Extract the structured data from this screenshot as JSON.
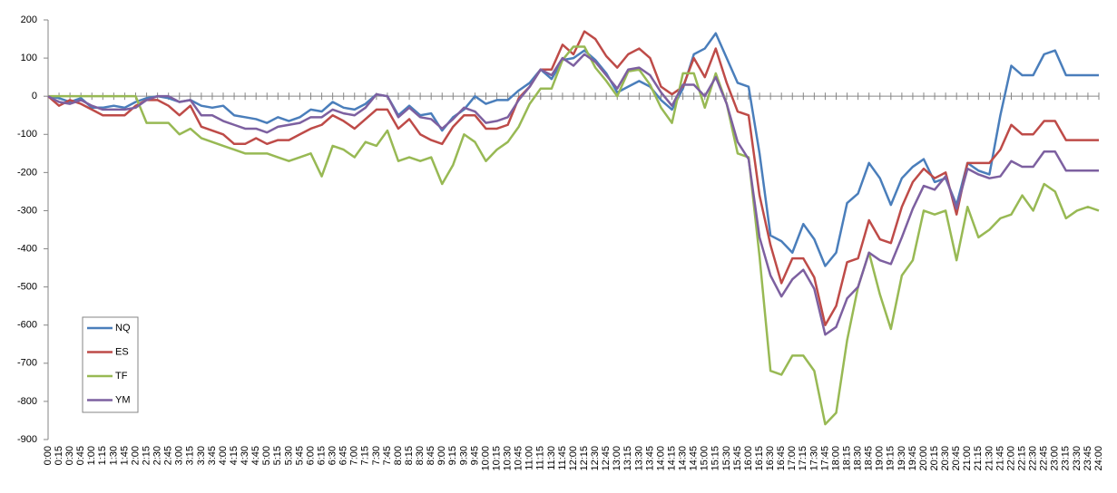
{
  "chart_data": {
    "type": "line",
    "categories": [
      "0:00",
      "0:15",
      "0:30",
      "0:45",
      "1:00",
      "1:15",
      "1:30",
      "1:45",
      "2:00",
      "2:15",
      "2:30",
      "2:45",
      "3:00",
      "3:15",
      "3:30",
      "3:45",
      "4:00",
      "4:15",
      "4:30",
      "4:45",
      "5:00",
      "5:15",
      "5:30",
      "5:45",
      "6:00",
      "6:15",
      "6:30",
      "6:45",
      "7:00",
      "7:15",
      "7:30",
      "7:45",
      "8:00",
      "8:15",
      "8:30",
      "8:45",
      "9:00",
      "9:15",
      "9:30",
      "9:45",
      "10:00",
      "10:15",
      "10:30",
      "10:45",
      "11:00",
      "11:15",
      "11:30",
      "11:45",
      "12:00",
      "12:15",
      "12:30",
      "12:45",
      "13:00",
      "13:15",
      "13:30",
      "13:45",
      "14:00",
      "14:15",
      "14:30",
      "14:45",
      "15:00",
      "15:15",
      "15:30",
      "15:45",
      "16:00",
      "16:15",
      "16:30",
      "16:45",
      "17:00",
      "17:15",
      "17:30",
      "17:45",
      "18:00",
      "18:15",
      "18:30",
      "18:45",
      "19:00",
      "19:15",
      "19:30",
      "19:45",
      "20:00",
      "20:15",
      "20:30",
      "20:45",
      "21:00",
      "21:15",
      "21:30",
      "21:45",
      "22:00",
      "22:15",
      "22:30",
      "22:45",
      "23:00",
      "23:15",
      "23:30",
      "23:45",
      "24:00"
    ],
    "series": [
      {
        "name": "NQ",
        "color": "#4a7ebb",
        "values": [
          0,
          -5,
          -15,
          -5,
          -30,
          -30,
          -25,
          -30,
          -15,
          -5,
          0,
          -5,
          -15,
          -10,
          -25,
          -30,
          -25,
          -50,
          -55,
          -60,
          -70,
          -55,
          -65,
          -55,
          -35,
          -40,
          -15,
          -30,
          -35,
          -20,
          5,
          0,
          -50,
          -25,
          -50,
          -45,
          -90,
          -55,
          -35,
          0,
          -20,
          -10,
          -10,
          15,
          35,
          70,
          45,
          95,
          100,
          120,
          95,
          60,
          10,
          25,
          40,
          25,
          -10,
          -35,
          20,
          110,
          125,
          165,
          100,
          35,
          25,
          -150,
          -365,
          -380,
          -410,
          -335,
          -375,
          -445,
          -410,
          -280,
          -255,
          -175,
          -215,
          -285,
          -215,
          -185,
          -165,
          -225,
          -215,
          -285,
          -175,
          -195,
          -205,
          -50,
          80,
          55,
          55,
          110,
          120,
          55,
          55,
          55,
          55
        ]
      },
      {
        "name": "ES",
        "color": "#be4b48",
        "values": [
          0,
          -25,
          -10,
          -20,
          -35,
          -50,
          -50,
          -50,
          -25,
          -10,
          -10,
          -25,
          -50,
          -25,
          -80,
          -90,
          -100,
          -125,
          -125,
          -110,
          -125,
          -115,
          -115,
          -100,
          -85,
          -75,
          -50,
          -65,
          -85,
          -60,
          -35,
          -35,
          -85,
          -60,
          -100,
          -115,
          -125,
          -80,
          -50,
          -50,
          -85,
          -85,
          -75,
          -5,
          25,
          70,
          70,
          135,
          110,
          170,
          150,
          105,
          75,
          110,
          125,
          100,
          25,
          5,
          25,
          100,
          50,
          125,
          35,
          -40,
          -50,
          -260,
          -390,
          -490,
          -425,
          -425,
          -475,
          -600,
          -550,
          -435,
          -425,
          -325,
          -375,
          -385,
          -290,
          -225,
          -190,
          -215,
          -200,
          -310,
          -175,
          -175,
          -175,
          -140,
          -75,
          -100,
          -100,
          -65,
          -65,
          -115,
          -115,
          -115,
          -115
        ]
      },
      {
        "name": "TF",
        "color": "#98b954",
        "values": [
          0,
          0,
          0,
          0,
          0,
          0,
          0,
          0,
          0,
          -70,
          -70,
          -70,
          -100,
          -85,
          -110,
          -120,
          -130,
          -140,
          -150,
          -150,
          -150,
          -160,
          -170,
          -160,
          -150,
          -210,
          -130,
          -140,
          -160,
          -120,
          -130,
          -90,
          -170,
          -160,
          -170,
          -160,
          -230,
          -180,
          -100,
          -120,
          -170,
          -140,
          -120,
          -80,
          -20,
          20,
          20,
          95,
          130,
          130,
          75,
          40,
          0,
          65,
          70,
          30,
          -30,
          -70,
          60,
          60,
          -30,
          60,
          -20,
          -150,
          -160,
          -420,
          -720,
          -730,
          -680,
          -680,
          -720,
          -860,
          -830,
          -640,
          -500,
          -410,
          -520,
          -610,
          -470,
          -430,
          -300,
          -310,
          -300,
          -430,
          -290,
          -370,
          -350,
          -320,
          -310,
          -260,
          -300,
          -230,
          -250,
          -320,
          -300,
          -290,
          -300
        ]
      },
      {
        "name": "YM",
        "color": "#7d60a0",
        "values": [
          0,
          -15,
          -20,
          -10,
          -25,
          -35,
          -35,
          -35,
          -30,
          -10,
          0,
          0,
          -15,
          -10,
          -50,
          -50,
          -65,
          -75,
          -85,
          -85,
          -95,
          -80,
          -75,
          -70,
          -55,
          -55,
          -35,
          -45,
          -50,
          -30,
          5,
          0,
          -55,
          -30,
          -55,
          -60,
          -85,
          -60,
          -30,
          -40,
          -70,
          -65,
          -55,
          -10,
          25,
          70,
          55,
          100,
          80,
          110,
          90,
          55,
          20,
          70,
          75,
          55,
          10,
          -25,
          30,
          30,
          0,
          50,
          -20,
          -120,
          -165,
          -370,
          -470,
          -525,
          -480,
          -455,
          -505,
          -625,
          -605,
          -530,
          -500,
          -410,
          -430,
          -440,
          -370,
          -295,
          -235,
          -245,
          -210,
          -295,
          -190,
          -205,
          -215,
          -210,
          -170,
          -185,
          -185,
          -145,
          -145,
          -195,
          -195,
          -195,
          -195
        ]
      }
    ],
    "ylim": [
      -900,
      200
    ],
    "yticks": [
      -900,
      -800,
      -700,
      -600,
      -500,
      -400,
      -300,
      -200,
      -100,
      0,
      100,
      200
    ],
    "grid": false,
    "legend": "lower-left"
  }
}
